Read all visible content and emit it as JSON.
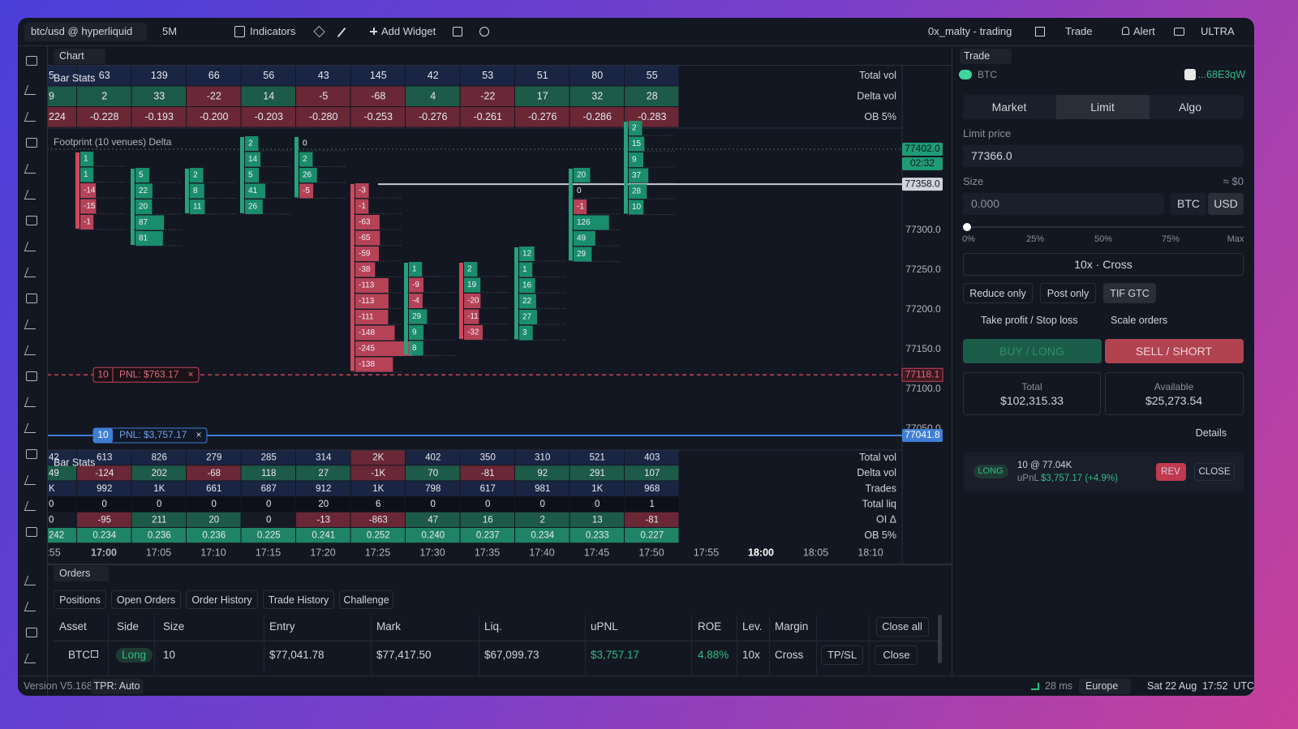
{
  "top_bar": {
    "symbol": "btc/usd @ hyperliquid",
    "interval": "5M",
    "indicators": "Indicators",
    "add_widget": "Add Widget",
    "account": "0x_malty - trading",
    "trade_menu": "Trade",
    "alert": "Alert",
    "plan": "ULTRA"
  },
  "chart": {
    "tab": "Chart",
    "bar_stats_top": "Bar Stats",
    "bar_stats_bottom": "Bar Stats",
    "footprint_title": "Footprint (10 venues) Delta",
    "top_stats": [
      {
        "label": "Total vol",
        "values": [
          "5",
          "63",
          "139",
          "66",
          "56",
          "43",
          "145",
          "42",
          "53",
          "51",
          "80",
          "55"
        ]
      },
      {
        "label": "Delta vol",
        "values": [
          "9",
          "2",
          "33",
          "-22",
          "14",
          "-5",
          "-68",
          "4",
          "-22",
          "17",
          "32",
          "28"
        ]
      },
      {
        "label": "OB 5%",
        "values": [
          "224",
          "-0.228",
          "-0.193",
          "-0.200",
          "-0.203",
          "-0.280",
          "-0.253",
          "-0.276",
          "-0.261",
          "-0.276",
          "-0.286",
          "-0.283"
        ]
      }
    ],
    "footprint": [
      [
        1,
        1,
        -14,
        -15,
        -1
      ],
      [
        5,
        22,
        20,
        87,
        81
      ],
      [
        2,
        8,
        11
      ],
      [
        2,
        14,
        5,
        41,
        26
      ],
      [
        0,
        2,
        26,
        -5
      ],
      [
        -3,
        -1,
        -63,
        -65,
        -59,
        -38,
        -113,
        -113,
        -111,
        -148,
        -245,
        -138
      ],
      [
        1,
        -9,
        -4,
        29,
        9,
        8
      ],
      [
        2,
        19,
        -20,
        -11,
        -32
      ],
      [
        12,
        1,
        16,
        22,
        27,
        3
      ],
      [
        20,
        0,
        -1,
        126,
        49,
        29
      ],
      [
        2,
        15,
        9,
        37,
        28,
        10
      ]
    ],
    "bottom_stats": [
      {
        "label": "Total vol",
        "values": [
          "42",
          "613",
          "826",
          "279",
          "285",
          "314",
          "2K",
          "402",
          "350",
          "310",
          "521",
          "403"
        ]
      },
      {
        "label": "Delta vol",
        "values": [
          "49",
          "-124",
          "202",
          "-68",
          "118",
          "27",
          "-1K",
          "70",
          "-81",
          "92",
          "291",
          "107"
        ]
      },
      {
        "label": "Trades",
        "values": [
          "K",
          "992",
          "1K",
          "661",
          "687",
          "912",
          "1K",
          "798",
          "617",
          "981",
          "1K",
          "968"
        ]
      },
      {
        "label": "Total liq",
        "values": [
          "0",
          "0",
          "0",
          "0",
          "0",
          "20",
          "6",
          "0",
          "0",
          "0",
          "0",
          "1"
        ]
      },
      {
        "label": "OI Δ",
        "values": [
          "0",
          "-95",
          "211",
          "20",
          "0",
          "-13",
          "-863",
          "47",
          "16",
          "2",
          "13",
          "-81"
        ]
      },
      {
        "label": "OB 5%",
        "values": [
          "242",
          "0.234",
          "0.236",
          "0.236",
          "0.225",
          "0.241",
          "0.252",
          "0.240",
          "0.237",
          "0.234",
          "0.233",
          "0.227"
        ]
      }
    ],
    "price_axis": [
      "77300.0",
      "77250.0",
      "77200.0",
      "77150.0",
      "77100.0",
      "77050.0"
    ],
    "tags": {
      "last": "77402.0",
      "countdown": "02:32",
      "cursor": "77358.0",
      "order": "77118.1",
      "position": "77041.8"
    },
    "order_line": {
      "size": "10",
      "pnl": "PNL: $763.17"
    },
    "position_line": {
      "size": "10",
      "pnl": "PNL: $3,757.17"
    },
    "time_axis": [
      ":55",
      "17:00",
      "17:05",
      "17:10",
      "17:15",
      "17:20",
      "17:25",
      "17:30",
      "17:35",
      "17:40",
      "17:45",
      "17:50",
      "17:55",
      "18:00",
      "18:05",
      "18:10"
    ]
  },
  "orders": {
    "tab": "Orders",
    "tabs": [
      "Positions",
      "Open Orders",
      "Order History",
      "Trade History",
      "Challenge"
    ],
    "columns": [
      "Asset",
      "Side",
      "Size",
      "Entry",
      "Mark",
      "Liq.",
      "uPNL",
      "ROE",
      "Lev.",
      "Margin"
    ],
    "close_all": "Close all",
    "row": [
      "BTC",
      "Long",
      "10",
      "$77,041.78",
      "$77,417.50",
      "$67,099.73",
      "$3,757.17",
      "4.88%",
      "10x",
      "Cross"
    ],
    "tpsl": "TP/SL",
    "close": "Close"
  },
  "trade": {
    "tab": "Trade",
    "asset": "BTC",
    "wallet": "...68E3qW",
    "order_types": [
      "Market",
      "Limit",
      "Algo"
    ],
    "limit_label": "Limit price",
    "limit_price": "77366.0",
    "size_label": "Size",
    "size_usd": "≈ $0",
    "size": "0.000",
    "units": [
      "BTC",
      "USD"
    ],
    "slider": [
      "0%",
      "25%",
      "50%",
      "75%",
      "Max"
    ],
    "leverage": "10x · Cross",
    "options": [
      "Reduce only",
      "Post only",
      "TIF GTC"
    ],
    "tpsl": "Take profit / Stop loss",
    "scale": "Scale orders",
    "buy": "BUY / LONG",
    "sell": "SELL / SHORT",
    "total_label": "Total",
    "total": "$102,315.33",
    "available_label": "Available",
    "available": "$25,273.54",
    "details": "Details",
    "position": {
      "side": "LONG",
      "size": "10 @ 77.04K",
      "upnl_label": "uPnL",
      "upnl": "$3,757.17 (+4.9%)",
      "rev": "REV",
      "close": "CLOSE"
    }
  },
  "status": {
    "version": "Version V5.168",
    "tpr": "TPR: Auto",
    "latency": "28 ms",
    "region": "Europe",
    "datetime": "Sat 22 Aug  17:52  UTC"
  }
}
